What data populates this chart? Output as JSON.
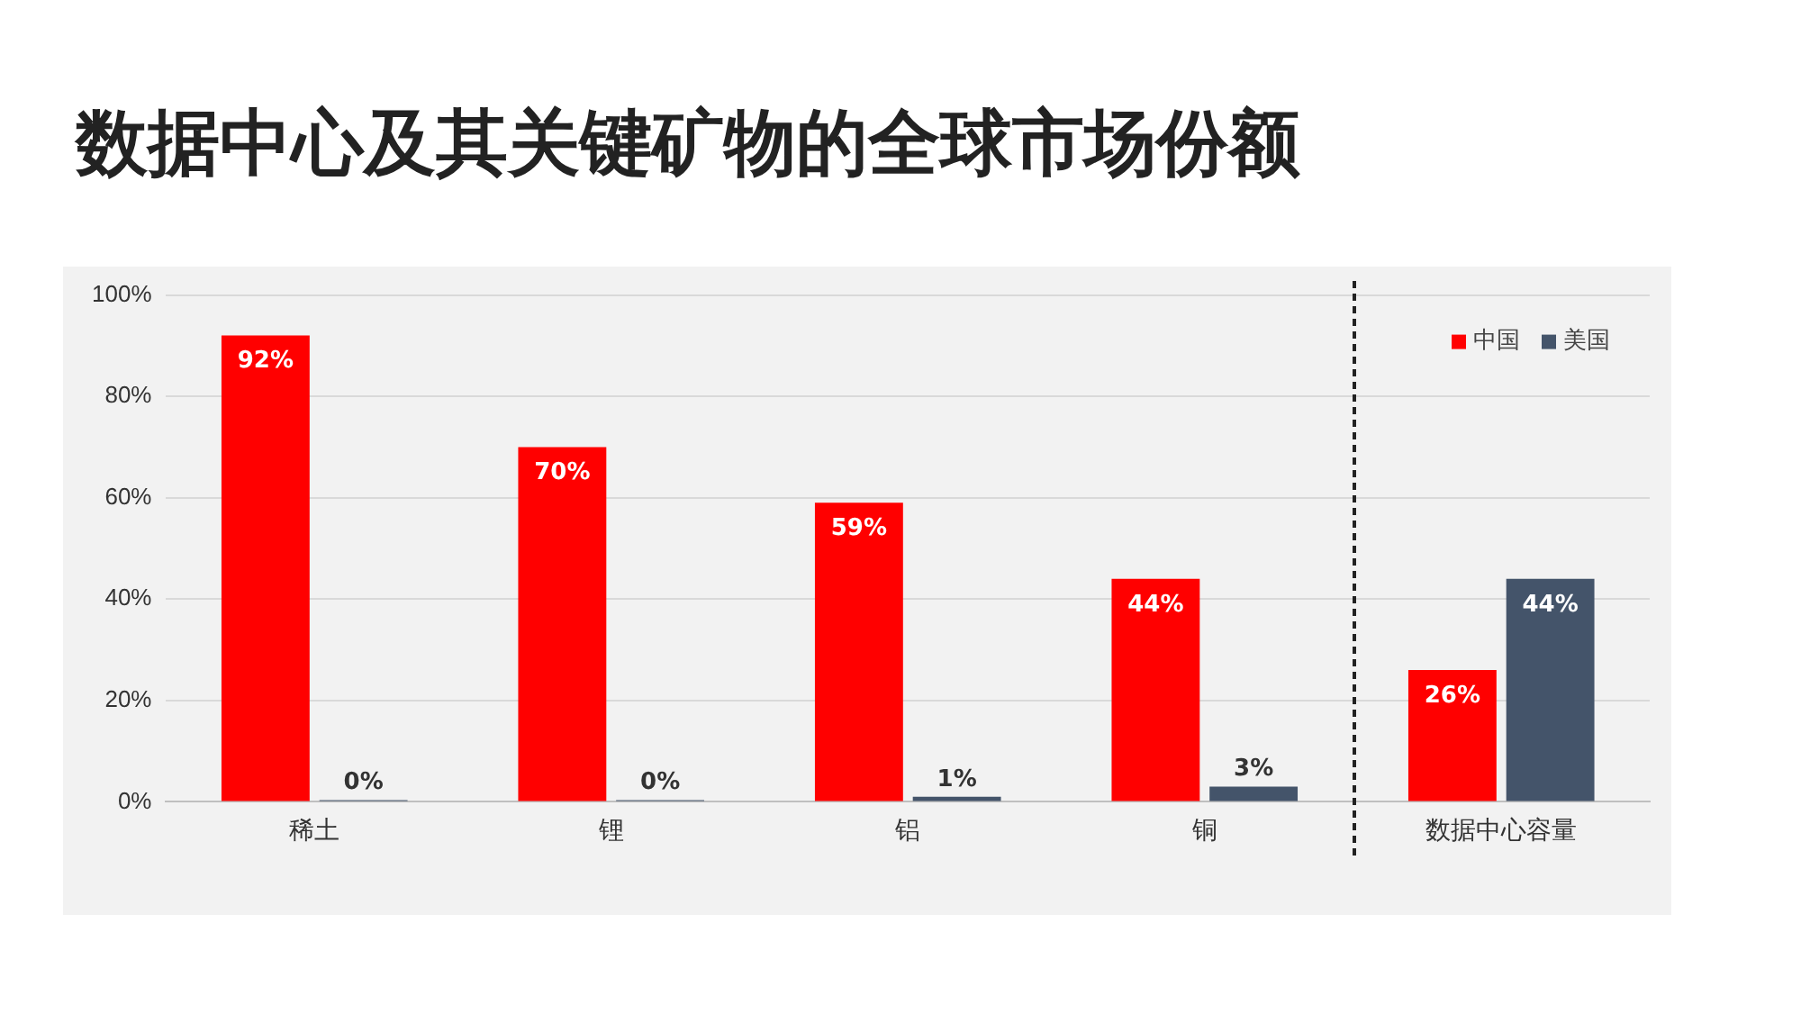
{
  "chart_data": {
    "type": "bar",
    "title": "数据中心及其关键矿物的全球市场份额",
    "categories": [
      "稀土",
      "锂",
      "铝",
      "铜",
      "数据中心容量"
    ],
    "series": [
      {
        "name": "中国",
        "color": "#ff0000",
        "values": [
          92,
          70,
          59,
          44,
          26
        ],
        "value_labels": [
          "92%",
          "70%",
          "59%",
          "44%",
          "26%"
        ]
      },
      {
        "name": "美国",
        "color": "#44546a",
        "values": [
          0,
          0,
          1,
          3,
          44
        ],
        "value_labels": [
          "0%",
          "0%",
          "1%",
          "3%",
          "44%"
        ]
      }
    ],
    "ylim": [
      0,
      100
    ],
    "yticks": [
      {
        "value": 0,
        "label": "0%"
      },
      {
        "value": 20,
        "label": "20%"
      },
      {
        "value": 40,
        "label": "40%"
      },
      {
        "value": 60,
        "label": "60%"
      },
      {
        "value": 80,
        "label": "80%"
      },
      {
        "value": 100,
        "label": "100%"
      }
    ],
    "grid": "y",
    "legend": "top right"
  }
}
